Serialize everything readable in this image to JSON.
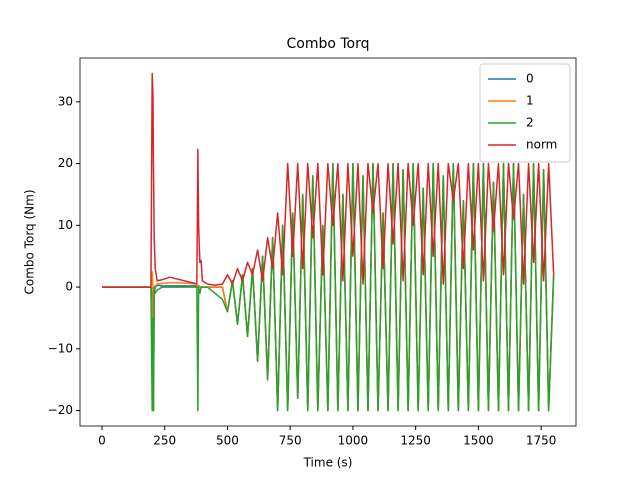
{
  "chart_data": {
    "type": "line",
    "title": "Combo Torq",
    "xlabel": "Time (s)",
    "ylabel": "Combo Torq (Nm)",
    "x": [
      0,
      100,
      195,
      200,
      203,
      205,
      208,
      212,
      220,
      240,
      270,
      300,
      350,
      378,
      382,
      385,
      390,
      395,
      400,
      420,
      450,
      480,
      500,
      520,
      540,
      560,
      580,
      600,
      620,
      640,
      660,
      680,
      700,
      720,
      740,
      760,
      780,
      800,
      820,
      840,
      860,
      880,
      900,
      920,
      940,
      960,
      980,
      1000,
      1020,
      1040,
      1060,
      1080,
      1100,
      1120,
      1140,
      1160,
      1180,
      1200,
      1220,
      1240,
      1260,
      1280,
      1300,
      1320,
      1340,
      1360,
      1380,
      1400,
      1420,
      1440,
      1460,
      1480,
      1500,
      1520,
      1540,
      1560,
      1580,
      1600,
      1620,
      1640,
      1660,
      1680,
      1700,
      1720,
      1740,
      1760,
      1780,
      1800
    ],
    "series": [
      {
        "name": "0",
        "color": "#1f77b4",
        "values": [
          0,
          0,
          0,
          -1,
          -5,
          -20,
          -1,
          0,
          0.3,
          0.2,
          0.2,
          0.2,
          0.2,
          0.2,
          0,
          0.1,
          0,
          0,
          0,
          0,
          0,
          0,
          -4,
          1,
          -6,
          2,
          -8,
          3,
          -12,
          5,
          -15,
          8,
          -20,
          10,
          -20,
          12,
          -18,
          15,
          -20,
          18,
          -20,
          10,
          -20,
          20,
          -20,
          15,
          -20,
          20,
          -20,
          18,
          -20,
          20,
          -20,
          12,
          -20,
          20,
          -20,
          19,
          -20,
          20,
          -20,
          16,
          -20,
          20,
          -20,
          18,
          -20,
          20,
          -20,
          14,
          -20,
          20,
          -20,
          20,
          -20,
          17,
          -20,
          20,
          -20,
          20,
          -20,
          15,
          -20,
          20,
          -20,
          19,
          -20,
          2
        ]
      },
      {
        "name": "1",
        "color": "#ff7f0e",
        "values": [
          0,
          0,
          0,
          2.5,
          0,
          -20,
          0,
          0.2,
          0.5,
          0.6,
          0.7,
          0.7,
          0.6,
          0.5,
          0,
          0.3,
          0,
          0,
          0,
          0,
          0,
          0,
          -4,
          1,
          -6,
          2,
          -8,
          3,
          -12,
          5,
          -15,
          8,
          -20,
          10,
          -20,
          12,
          -18,
          15,
          -20,
          18,
          -20,
          10,
          -20,
          20,
          -20,
          15,
          -20,
          20,
          -20,
          18,
          -20,
          20,
          -20,
          12,
          -20,
          20,
          -20,
          19,
          -20,
          20,
          -20,
          16,
          -20,
          20,
          -20,
          18,
          -20,
          20,
          -20,
          14,
          -20,
          20,
          -20,
          20,
          -20,
          17,
          -20,
          20,
          -20,
          20,
          -20,
          15,
          -20,
          20,
          -20,
          19,
          -20,
          2
        ]
      },
      {
        "name": "2",
        "color": "#2ca02c",
        "values": [
          0,
          0,
          0,
          -20,
          -5,
          -20,
          0,
          -1,
          -0.5,
          0,
          0,
          0,
          0,
          0,
          -20,
          0,
          -1,
          0,
          0,
          0,
          -1,
          -2,
          -4,
          1,
          -6,
          2,
          -8,
          3,
          -12,
          5,
          -15,
          8,
          -20,
          10,
          -20,
          12,
          -18,
          15,
          -20,
          18,
          -20,
          10,
          -20,
          20,
          -20,
          15,
          -20,
          20,
          -20,
          18,
          -20,
          20,
          -20,
          12,
          -20,
          20,
          -20,
          19,
          -20,
          20,
          -20,
          16,
          -20,
          20,
          -20,
          18,
          -20,
          20,
          -20,
          14,
          -20,
          20,
          -20,
          20,
          -20,
          17,
          -20,
          20,
          -20,
          20,
          -20,
          15,
          -20,
          20,
          -20,
          19,
          -20,
          2
        ]
      },
      {
        "name": "norm",
        "color": "#d62728",
        "values": [
          0,
          0,
          0,
          34.6,
          31,
          20,
          8,
          3,
          1,
          1.2,
          1.6,
          1.3,
          0.8,
          0.5,
          22.3,
          10,
          4,
          4.3,
          1,
          0.5,
          0.3,
          0.5,
          2,
          0.5,
          3,
          1,
          4,
          2,
          6,
          1,
          8,
          3,
          12,
          2,
          20,
          5,
          20,
          3,
          20,
          8,
          20,
          2,
          20,
          10,
          20,
          1,
          20,
          5,
          20,
          0.5,
          20,
          12,
          20,
          3,
          20,
          7,
          20,
          1,
          20,
          10,
          20,
          2,
          20,
          5,
          20,
          0.5,
          20,
          14,
          20,
          3,
          20,
          6,
          20,
          1,
          20,
          9,
          20,
          2,
          20,
          11,
          20,
          0.5,
          20,
          4,
          20,
          1,
          20,
          2
        ]
      }
    ],
    "xlim": [
      -87.7,
      1889
    ],
    "ylim": [
      -22.5,
      37.1
    ],
    "xticks": [
      0,
      250,
      500,
      750,
      1000,
      1250,
      1500,
      1750
    ],
    "yticks": [
      {
        "value": -20,
        "label": "−20"
      },
      {
        "value": -10,
        "label": "−10"
      },
      0,
      10,
      20,
      30
    ],
    "legend": "upper right"
  }
}
